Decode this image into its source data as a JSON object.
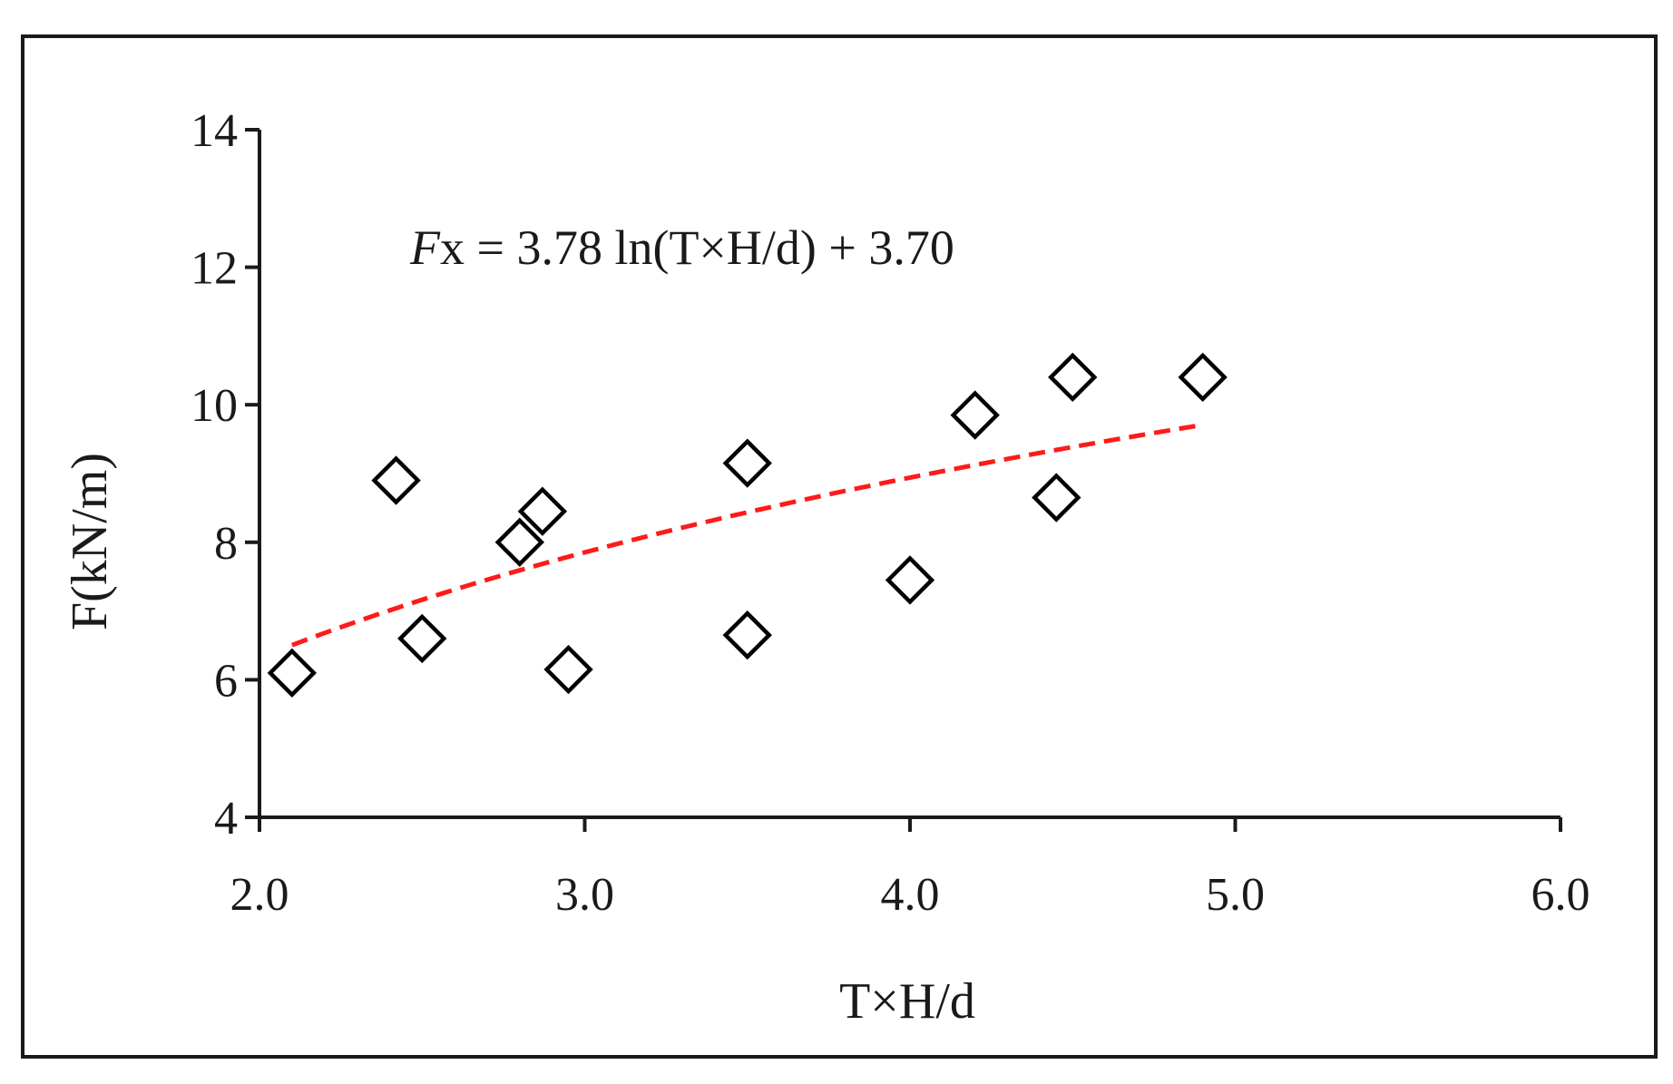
{
  "chart_data": {
    "type": "scatter",
    "xlabel": "T×H/d",
    "ylabel": "F(kN/m)",
    "xlim": [
      2.0,
      6.0
    ],
    "ylim": [
      4,
      14
    ],
    "x_ticks": [
      "2.0",
      "3.0",
      "4.0",
      "5.0",
      "6.0"
    ],
    "y_ticks": [
      "4",
      "6",
      "8",
      "10",
      "12",
      "14"
    ],
    "grid": false,
    "marker": "diamond",
    "points": [
      {
        "x": 2.1,
        "y": 6.1
      },
      {
        "x": 2.42,
        "y": 8.9
      },
      {
        "x": 2.5,
        "y": 6.6
      },
      {
        "x": 2.8,
        "y": 8.0
      },
      {
        "x": 2.87,
        "y": 8.45
      },
      {
        "x": 2.95,
        "y": 6.15
      },
      {
        "x": 3.5,
        "y": 9.15
      },
      {
        "x": 3.5,
        "y": 6.65
      },
      {
        "x": 4.0,
        "y": 7.45
      },
      {
        "x": 4.2,
        "y": 9.85
      },
      {
        "x": 4.45,
        "y": 8.65
      },
      {
        "x": 4.5,
        "y": 10.4
      },
      {
        "x": 4.9,
        "y": 10.4
      }
    ],
    "trendline": {
      "model": "log",
      "a": 3.78,
      "b": 3.7,
      "x_range": [
        2.1,
        4.9
      ],
      "color": "#ff1a1a",
      "style": "dashed"
    },
    "annotation": {
      "var": "F",
      "rest": "x = 3.78 ln(T×H/d) + 3.70"
    }
  }
}
